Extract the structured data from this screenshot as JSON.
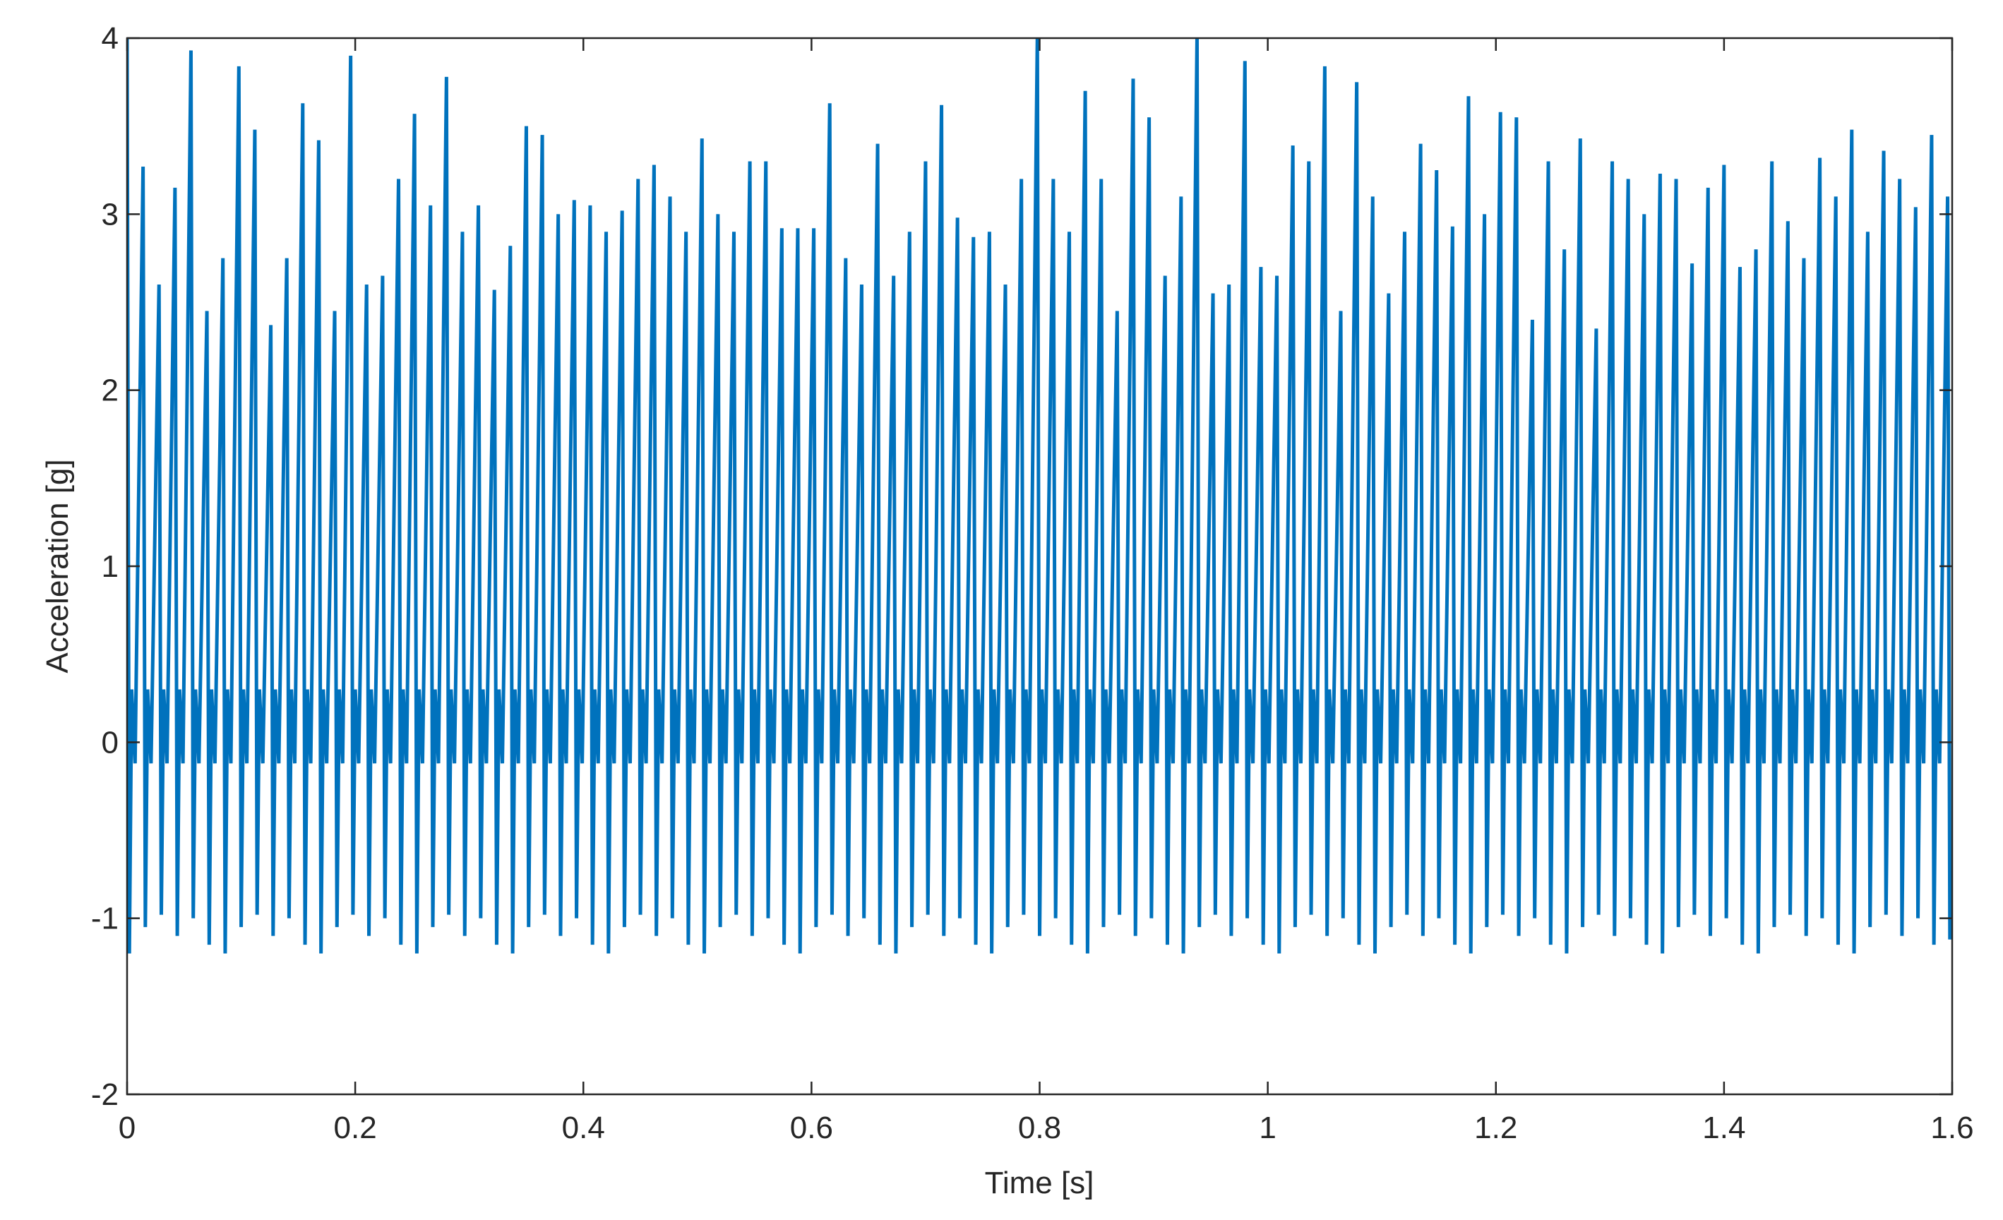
{
  "chart_data": {
    "type": "line",
    "xlabel": "Time [s]",
    "ylabel": "Acceleration [g]",
    "color": "#0072bd",
    "xlim": [
      0,
      1.6
    ],
    "xticks": [
      0,
      0.2,
      0.4,
      0.6,
      0.8,
      1,
      1.2,
      1.4,
      1.6
    ],
    "ylim": [
      -2,
      4
    ],
    "yticks": [
      -2,
      -1,
      0,
      1,
      2,
      3,
      4
    ],
    "grid": false,
    "x": [
      0,
      0.002,
      0.004,
      0.007,
      0.014,
      0.016,
      0.018,
      0.021,
      0.028,
      0.03,
      0.032,
      0.035,
      0.042,
      0.044,
      0.046,
      0.049,
      0.056,
      0.058,
      0.06,
      0.063,
      0.07,
      0.072,
      0.074,
      0.077,
      0.084,
      0.086,
      0.088,
      0.091,
      0.098,
      0.1,
      0.102,
      0.105,
      0.112,
      0.114,
      0.116,
      0.119,
      0.126,
      0.128,
      0.13,
      0.133,
      0.14,
      0.142,
      0.144,
      0.147,
      0.154,
      0.156,
      0.158,
      0.161,
      0.168,
      0.17,
      0.172,
      0.175,
      0.182,
      0.184,
      0.186,
      0.189,
      0.196,
      0.198,
      0.2,
      0.203,
      0.21,
      0.212,
      0.214,
      0.217,
      0.224,
      0.226,
      0.228,
      0.231,
      0.238,
      0.24,
      0.242,
      0.245,
      0.252,
      0.254,
      0.256,
      0.259,
      0.266,
      0.268,
      0.27,
      0.273,
      0.28,
      0.282,
      0.284,
      0.287,
      0.294,
      0.296,
      0.298,
      0.301,
      0.308,
      0.31,
      0.312,
      0.315,
      0.322,
      0.324,
      0.326,
      0.329,
      0.336,
      0.338,
      0.34,
      0.343,
      0.35,
      0.352,
      0.354,
      0.357,
      0.364,
      0.366,
      0.368,
      0.371,
      0.378,
      0.38,
      0.382,
      0.385,
      0.392,
      0.394,
      0.396,
      0.399,
      0.406,
      0.408,
      0.41,
      0.413,
      0.42,
      0.422,
      0.424,
      0.427,
      0.434,
      0.436,
      0.438,
      0.441,
      0.448,
      0.45,
      0.452,
      0.455,
      0.462,
      0.464,
      0.466,
      0.469,
      0.476,
      0.478,
      0.48,
      0.483,
      0.49,
      0.492,
      0.494,
      0.497,
      0.504,
      0.506,
      0.508,
      0.511,
      0.518,
      0.52,
      0.522,
      0.525,
      0.532,
      0.534,
      0.536,
      0.539,
      0.546,
      0.548,
      0.55,
      0.553,
      0.56,
      0.562,
      0.564,
      0.567,
      0.574,
      0.576,
      0.578,
      0.581,
      0.588,
      0.59,
      0.592,
      0.595,
      0.602,
      0.604,
      0.606,
      0.609,
      0.616,
      0.618,
      0.62,
      0.623,
      0.63,
      0.632,
      0.634,
      0.637,
      0.644,
      0.646,
      0.648,
      0.651,
      0.658,
      0.66,
      0.662,
      0.665,
      0.672,
      0.674,
      0.676,
      0.679,
      0.686,
      0.688,
      0.69,
      0.693,
      0.7,
      0.702,
      0.704,
      0.707,
      0.714,
      0.716,
      0.718,
      0.721,
      0.728,
      0.73,
      0.732,
      0.735,
      0.742,
      0.744,
      0.746,
      0.749,
      0.756,
      0.758,
      0.76,
      0.763,
      0.77,
      0.772,
      0.774,
      0.777,
      0.784,
      0.786,
      0.788,
      0.791,
      0.798,
      0.8,
      0.802,
      0.805,
      0.812,
      0.814,
      0.816,
      0.819,
      0.826,
      0.828,
      0.83,
      0.833,
      0.84,
      0.842,
      0.844,
      0.847,
      0.854,
      0.856,
      0.858,
      0.861,
      0.868,
      0.87,
      0.872,
      0.875,
      0.882,
      0.884,
      0.886,
      0.889,
      0.896,
      0.898,
      0.9,
      0.903,
      0.91,
      0.912,
      0.914,
      0.917,
      0.924,
      0.926,
      0.928,
      0.931,
      0.938,
      0.94,
      0.942,
      0.945,
      0.952,
      0.954,
      0.956,
      0.959,
      0.966,
      0.968,
      0.97,
      0.973,
      0.98,
      0.982,
      0.984,
      0.987,
      0.994,
      0.996,
      0.998,
      1.001,
      1.008,
      1.01,
      1.012,
      1.015,
      1.022,
      1.024,
      1.026,
      1.029,
      1.036,
      1.038,
      1.04,
      1.043,
      1.05,
      1.052,
      1.054,
      1.057,
      1.064,
      1.066,
      1.068,
      1.071,
      1.078,
      1.08,
      1.082,
      1.085,
      1.092,
      1.094,
      1.096,
      1.099,
      1.106,
      1.108,
      1.11,
      1.113,
      1.12,
      1.122,
      1.124,
      1.127,
      1.134,
      1.136,
      1.138,
      1.141,
      1.148,
      1.15,
      1.152,
      1.155,
      1.162,
      1.164,
      1.166,
      1.169,
      1.176,
      1.178,
      1.18,
      1.183,
      1.19,
      1.192,
      1.194,
      1.197,
      1.204,
      1.206,
      1.208,
      1.211,
      1.218,
      1.22,
      1.222,
      1.225,
      1.232,
      1.234,
      1.236,
      1.239,
      1.246,
      1.248,
      1.25,
      1.253,
      1.26,
      1.262,
      1.264,
      1.267,
      1.274,
      1.276,
      1.278,
      1.281,
      1.288,
      1.29,
      1.292,
      1.295,
      1.302,
      1.304,
      1.306,
      1.309,
      1.316,
      1.318,
      1.32,
      1.323,
      1.33,
      1.332,
      1.334,
      1.337,
      1.344,
      1.346,
      1.348,
      1.351,
      1.358,
      1.36,
      1.362,
      1.365,
      1.372,
      1.374,
      1.376,
      1.379,
      1.386,
      1.388,
      1.39,
      1.393,
      1.4,
      1.402,
      1.404,
      1.407,
      1.414,
      1.416,
      1.418,
      1.421,
      1.428,
      1.43,
      1.432,
      1.435,
      1.442,
      1.444,
      1.446,
      1.449,
      1.456,
      1.458,
      1.46,
      1.463,
      1.47,
      1.472,
      1.474,
      1.477,
      1.484,
      1.486,
      1.488,
      1.491,
      1.498,
      1.5,
      1.502,
      1.505,
      1.512,
      1.514,
      1.516,
      1.519,
      1.526,
      1.528,
      1.53,
      1.533,
      1.54,
      1.542,
      1.544,
      1.547,
      1.554,
      1.556,
      1.558,
      1.561,
      1.568,
      1.57,
      1.572,
      1.575,
      1.582,
      1.584,
      1.586,
      1.589,
      1.596,
      1.598,
      1.6
    ],
    "values": [
      4,
      -1.2,
      0.3,
      -0.12,
      3.27,
      -1.05,
      0.3,
      -0.12,
      2.6,
      -0.98,
      0.3,
      -0.12,
      3.15,
      -1.1,
      0.3,
      -0.12,
      3.93,
      -1,
      0.3,
      -0.12,
      2.45,
      -1.15,
      0.3,
      -0.12,
      2.75,
      -1.2,
      0.3,
      -0.12,
      3.84,
      -1.05,
      0.3,
      -0.12,
      3.48,
      -0.98,
      0.3,
      -0.12,
      2.37,
      -1.1,
      0.3,
      -0.12,
      2.75,
      -1,
      0.3,
      -0.12,
      3.63,
      -1.15,
      0.3,
      -0.12,
      3.42,
      -1.2,
      0.3,
      -0.12,
      2.45,
      -1.05,
      0.3,
      -0.12,
      3.9,
      -0.98,
      0.3,
      -0.12,
      2.6,
      -1.1,
      0.3,
      -0.12,
      2.65,
      -1,
      0.3,
      -0.12,
      3.2,
      -1.15,
      0.3,
      -0.12,
      3.57,
      -1.2,
      0.3,
      -0.12,
      3.05,
      -1.05,
      0.3,
      -0.12,
      3.78,
      -0.98,
      0.3,
      -0.12,
      2.9,
      -1.1,
      0.3,
      -0.12,
      3.05,
      -1,
      0.3,
      -0.12,
      2.57,
      -1.15,
      0.3,
      -0.12,
      2.82,
      -1.2,
      0.3,
      -0.12,
      3.5,
      -1.05,
      0.3,
      -0.12,
      3.45,
      -0.98,
      0.3,
      -0.12,
      3,
      -1.1,
      0.3,
      -0.12,
      3.08,
      -1,
      0.3,
      -0.12,
      3.05,
      -1.15,
      0.3,
      -0.12,
      2.9,
      -1.2,
      0.3,
      -0.12,
      3.02,
      -1.05,
      0.3,
      -0.12,
      3.2,
      -0.98,
      0.3,
      -0.12,
      3.28,
      -1.1,
      0.3,
      -0.12,
      3.1,
      -1,
      0.3,
      -0.12,
      2.9,
      -1.15,
      0.3,
      -0.12,
      3.43,
      -1.2,
      0.3,
      -0.12,
      3,
      -1.05,
      0.3,
      -0.12,
      2.9,
      -0.98,
      0.3,
      -0.12,
      3.3,
      -1.1,
      0.3,
      -0.12,
      3.3,
      -1,
      0.3,
      -0.12,
      2.92,
      -1.15,
      0.3,
      -0.12,
      2.92,
      -1.2,
      0.3,
      -0.12,
      2.92,
      -1.05,
      0.3,
      -0.12,
      3.63,
      -0.98,
      0.3,
      -0.12,
      2.75,
      -1.1,
      0.3,
      -0.12,
      2.6,
      -1,
      0.3,
      -0.12,
      3.4,
      -1.15,
      0.3,
      -0.12,
      2.65,
      -1.2,
      0.3,
      -0.12,
      2.9,
      -1.05,
      0.3,
      -0.12,
      3.3,
      -0.98,
      0.3,
      -0.12,
      3.62,
      -1.1,
      0.3,
      -0.12,
      2.98,
      -1,
      0.3,
      -0.12,
      2.87,
      -1.15,
      0.3,
      -0.12,
      2.9,
      -1.2,
      0.3,
      -0.12,
      2.6,
      -1.05,
      0.3,
      -0.12,
      3.2,
      -0.98,
      0.3,
      -0.12,
      4,
      -1.1,
      0.3,
      -0.12,
      3.2,
      -1,
      0.3,
      -0.12,
      2.9,
      -1.15,
      0.3,
      -0.12,
      3.7,
      -1.2,
      0.3,
      -0.12,
      3.2,
      -1.05,
      0.3,
      -0.12,
      2.45,
      -0.98,
      0.3,
      -0.12,
      3.77,
      -1.1,
      0.3,
      -0.12,
      3.55,
      -1,
      0.3,
      -0.12,
      2.65,
      -1.15,
      0.3,
      -0.12,
      3.1,
      -1.2,
      0.3,
      -0.12,
      4,
      -1.05,
      0.3,
      -0.12,
      2.55,
      -0.98,
      0.3,
      -0.12,
      2.6,
      -1.1,
      0.3,
      -0.12,
      3.87,
      -1,
      0.3,
      -0.12,
      2.7,
      -1.15,
      0.3,
      -0.12,
      2.65,
      -1.2,
      0.3,
      -0.12,
      3.39,
      -1.05,
      0.3,
      -0.12,
      3.3,
      -0.98,
      0.3,
      -0.12,
      3.84,
      -1.1,
      0.3,
      -0.12,
      2.45,
      -1,
      0.3,
      -0.12,
      3.75,
      -1.15,
      0.3,
      -0.12,
      3.1,
      -1.2,
      0.3,
      -0.12,
      2.55,
      -1.05,
      0.3,
      -0.12,
      2.9,
      -0.98,
      0.3,
      -0.12,
      3.4,
      -1.1,
      0.3,
      -0.12,
      3.25,
      -1,
      0.3,
      -0.12,
      2.93,
      -1.15,
      0.3,
      -0.12,
      3.67,
      -1.2,
      0.3,
      -0.12,
      3,
      -1.05,
      0.3,
      -0.12,
      3.58,
      -0.98,
      0.3,
      -0.12,
      3.55,
      -1.1,
      0.3,
      -0.12,
      2.4,
      -1,
      0.3,
      -0.12,
      3.3,
      -1.15,
      0.3,
      -0.12,
      2.8,
      -1.2,
      0.3,
      -0.12,
      3.43,
      -1.05,
      0.3,
      -0.12,
      2.35,
      -0.98,
      0.3,
      -0.12,
      3.3,
      -1.1,
      0.3,
      -0.12,
      3.2,
      -1,
      0.3,
      -0.12,
      3,
      -1.15,
      0.3,
      -0.12,
      3.23,
      -1.2,
      0.3,
      -0.12,
      3.2,
      -1.05,
      0.3,
      -0.12,
      2.72,
      -0.98,
      0.3,
      -0.12,
      3.15,
      -1.1,
      0.3,
      -0.12,
      3.28,
      -1,
      0.3,
      -0.12,
      2.7,
      -1.15,
      0.3,
      -0.12,
      2.8,
      -1.2,
      0.3,
      -0.12,
      3.3,
      -1.05,
      0.3,
      -0.12,
      2.96,
      -0.98,
      0.3,
      -0.12,
      2.75,
      -1.1,
      0.3,
      -0.12,
      3.32,
      -1,
      0.3,
      -0.12,
      3.1,
      -1.15,
      0.3,
      -0.12,
      3.48,
      -1.2,
      0.3,
      -0.12,
      2.9,
      -1.05,
      0.3,
      -0.12,
      3.36,
      -0.98,
      0.3,
      -0.12,
      3.2,
      -1.1,
      0.3,
      -0.12,
      3.04,
      -1,
      0.3,
      -0.12,
      3.45,
      -1.15,
      0.3,
      -0.12,
      3.1,
      -1.12,
      -0.85
    ]
  }
}
